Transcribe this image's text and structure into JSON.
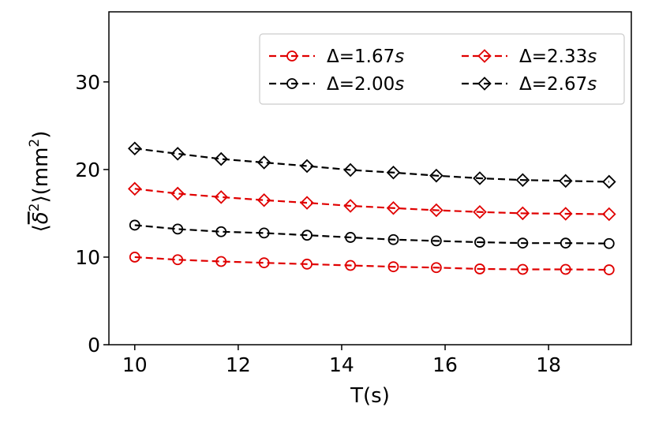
{
  "chart_data": {
    "type": "line",
    "xlabel": "T(s)",
    "ylabel_parts": [
      "⟨",
      "δ",
      "2",
      "⟩(mm",
      "2",
      ")"
    ],
    "xlim": [
      9.5,
      19.6
    ],
    "ylim": [
      0,
      38
    ],
    "x_ticks": [
      10,
      12,
      14,
      16,
      18
    ],
    "y_ticks": [
      0,
      10,
      20,
      30
    ],
    "x_tick_labels": [
      "10",
      "12",
      "14",
      "16",
      "18"
    ],
    "y_tick_labels": [
      "0",
      "10",
      "20",
      "30"
    ],
    "legend_position": "top-right",
    "legend_ncol": 2,
    "x": [
      10.0,
      10.83,
      11.67,
      12.5,
      13.33,
      14.17,
      15.0,
      15.83,
      16.67,
      17.5,
      18.33,
      19.17
    ],
    "series": [
      {
        "name": "Δ=1.67s",
        "label_prefix": "Δ=1.67",
        "label_unit": "s",
        "color": "#e00000",
        "marker": "circle",
        "values": [
          10.0,
          9.7,
          9.5,
          9.35,
          9.2,
          9.05,
          8.9,
          8.8,
          8.65,
          8.6,
          8.6,
          8.55
        ]
      },
      {
        "name": "Δ=2.00s",
        "label_prefix": "Δ=2.00",
        "label_unit": "s",
        "color": "#000000",
        "marker": "circle",
        "values": [
          13.65,
          13.2,
          12.9,
          12.75,
          12.5,
          12.25,
          12.0,
          11.85,
          11.7,
          11.6,
          11.6,
          11.55
        ]
      },
      {
        "name": "Δ=2.33s",
        "label_prefix": "Δ=2.33",
        "label_unit": "s",
        "color": "#e00000",
        "marker": "diamond",
        "values": [
          17.8,
          17.25,
          16.85,
          16.5,
          16.2,
          15.85,
          15.6,
          15.35,
          15.15,
          15.0,
          14.95,
          14.9
        ]
      },
      {
        "name": "Δ=2.67s",
        "label_prefix": "Δ=2.67",
        "label_unit": "s",
        "color": "#000000",
        "marker": "diamond",
        "values": [
          22.4,
          21.8,
          21.2,
          20.8,
          20.4,
          19.95,
          19.65,
          19.3,
          19.0,
          18.8,
          18.7,
          18.6
        ]
      }
    ]
  }
}
